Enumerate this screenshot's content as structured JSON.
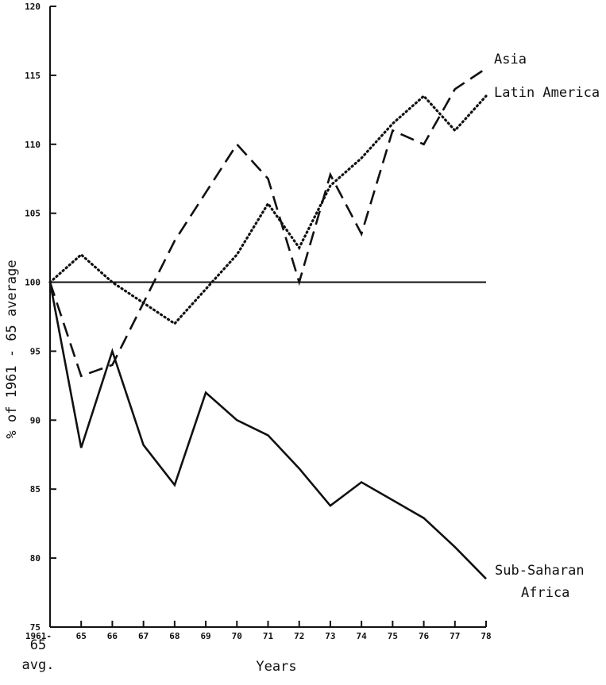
{
  "chart_data": {
    "type": "line",
    "title": "",
    "xlabel": "Years",
    "ylabel": "% of 1961 - 65 average",
    "ylim": [
      75,
      120
    ],
    "yticks": [
      75,
      80,
      85,
      90,
      95,
      100,
      105,
      110,
      115,
      120
    ],
    "x": [
      "1961-65 avg.",
      "65",
      "66",
      "67",
      "68",
      "69",
      "70",
      "71",
      "72",
      "73",
      "74",
      "75",
      "76",
      "77",
      "78"
    ],
    "x_tick_labels": [
      "1961-",
      "65",
      "66",
      "67",
      "68",
      "69",
      "70",
      "71",
      "72",
      "73",
      "74",
      "75",
      "76",
      "77",
      "78"
    ],
    "x_origin_label_extra": [
      "65",
      "avg."
    ],
    "grid": false,
    "legend": "inline labels at line ends",
    "reference_line": 100,
    "series": [
      {
        "name": "Asia",
        "style": "dashed",
        "values": [
          100,
          93.2,
          94,
          98.5,
          103,
          106.5,
          110,
          107.5,
          100,
          107.8,
          103.5,
          111,
          110,
          114,
          115.5
        ]
      },
      {
        "name": "Latin America",
        "style": "dotted",
        "values": [
          100,
          102,
          100,
          98.5,
          97,
          99.5,
          102,
          105.7,
          102.5,
          107,
          109,
          111.5,
          113.5,
          111,
          113.5
        ]
      },
      {
        "name": "Sub-Saharan Africa",
        "label_lines": [
          "Sub-Saharan",
          "Africa"
        ],
        "style": "solid",
        "values": [
          100,
          88,
          95,
          88.2,
          85.3,
          92,
          90,
          88.9,
          86.5,
          83.8,
          85.5,
          84.2,
          82.9,
          80.8,
          78.5
        ]
      }
    ],
    "colors": {
      "ink": "#111111",
      "background": "#ffffff"
    }
  }
}
